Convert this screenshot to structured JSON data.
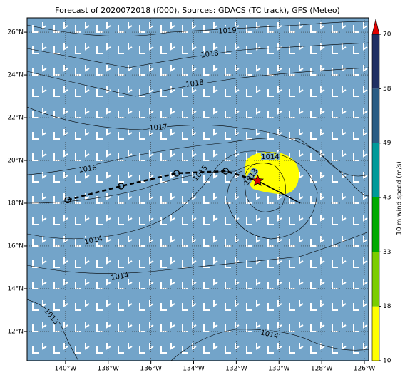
{
  "chart_data": {
    "type": "map",
    "title": "Forecast of 2020072018 (f000), Sources: GDACS (TC track), GFS (Meteo)",
    "xlim": [
      -141.8,
      -125.8
    ],
    "ylim": [
      10.63,
      26.67
    ],
    "xticks": [
      {
        "value": -140,
        "label": "140°W"
      },
      {
        "value": -138,
        "label": "138°W"
      },
      {
        "value": -136,
        "label": "136°W"
      },
      {
        "value": -134,
        "label": "134°W"
      },
      {
        "value": -132,
        "label": "132°W"
      },
      {
        "value": -130,
        "label": "130°W"
      },
      {
        "value": -128,
        "label": "128°W"
      },
      {
        "value": -126,
        "label": "126°W"
      }
    ],
    "yticks": [
      {
        "value": 12,
        "label": "12°N"
      },
      {
        "value": 14,
        "label": "14°N"
      },
      {
        "value": 16,
        "label": "16°N"
      },
      {
        "value": 18,
        "label": "18°N"
      },
      {
        "value": 20,
        "label": "20°N"
      },
      {
        "value": 22,
        "label": "22°N"
      },
      {
        "value": 24,
        "label": "24°N"
      },
      {
        "value": 26,
        "label": "26°N"
      }
    ],
    "grid": true,
    "isobar_labels": [
      "1019",
      "1018",
      "1018",
      "1017",
      "1016",
      "1015",
      "1014",
      "1013",
      "1014",
      "1014",
      "1013",
      "1014"
    ],
    "track": {
      "lon": [
        -139.9,
        -137.4,
        -134.8,
        -132.5,
        -131.0
      ],
      "lat": [
        18.15,
        18.8,
        19.4,
        19.5,
        19.05
      ]
    },
    "forecast": {
      "lon": [
        -131.0,
        -129.0
      ],
      "lat": [
        19.05,
        18.0
      ]
    },
    "colorbar": {
      "label": "10 m wind speed (m/s)",
      "ticks": [
        10,
        18,
        33,
        43,
        49,
        58,
        70
      ],
      "colors": [
        "#ffff00",
        "#7ccd00",
        "#00aa00",
        "#009a9a",
        "#2a5c84",
        "#1f2f63"
      ],
      "extend_color": "#e00000"
    }
  }
}
